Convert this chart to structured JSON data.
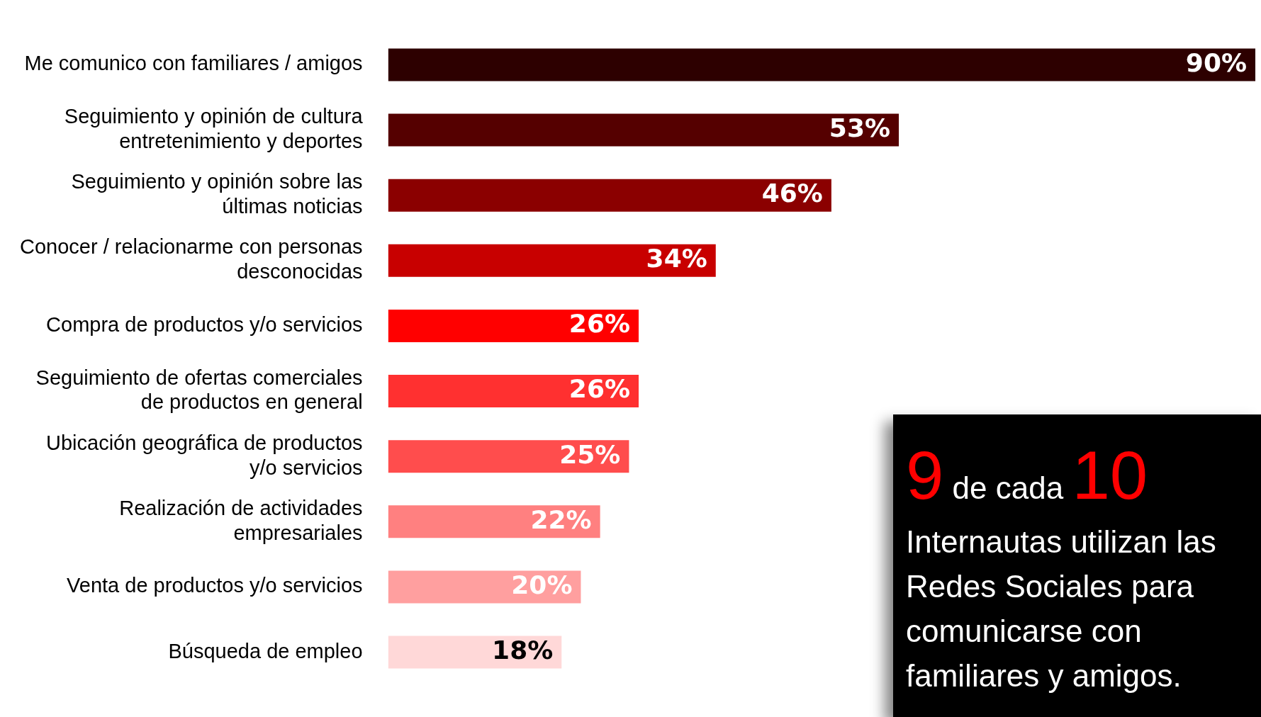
{
  "chart_data": {
    "type": "bar",
    "orientation": "horizontal",
    "tick_labels": "y",
    "data_labels": true,
    "legend": false,
    "categories": [
      "Me comunico con familiares / amigos",
      "Seguimiento y opinión de cultura entretenimiento y deportes",
      "Seguimiento y opinión sobre las últimas noticias",
      "Conocer / relacionarme con personas desconocidas",
      "Compra de productos y/o servicios",
      "Seguimiento de ofertas comerciales de productos en general",
      "Ubicación geográfica de productos y/o servicios",
      "Realización de actividades empresariales",
      "Venta de productos y/o servicios",
      "Búsqueda de empleo"
    ],
    "values": [
      90,
      53,
      46,
      34,
      26,
      26,
      25,
      22,
      20,
      18
    ],
    "value_labels": [
      "90%",
      "53%",
      "46%",
      "34%",
      "26%",
      "26%",
      "25%",
      "22%",
      "20%",
      "18%"
    ],
    "colors": [
      "#2d0000",
      "#550000",
      "#8b0000",
      "#c80000",
      "#ff0000",
      "#ff3030",
      "#ff4d4d",
      "#ff8080",
      "#ff9f9f",
      "#ffd8d8"
    ],
    "annotations": [
      "9",
      "de cada",
      "10",
      "Internautas utilizan las Redes Sociales para comunicarse con familiares y amigos."
    ]
  }
}
